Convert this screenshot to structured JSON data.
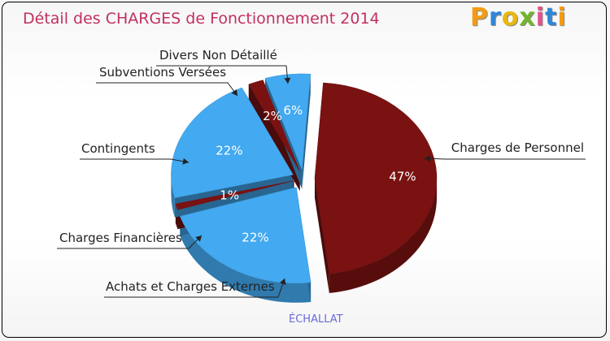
{
  "header": {
    "title": "Détail des CHARGES de Fonctionnement 2014",
    "brand": "Proxiti",
    "brand_colors": [
      "#f39c12",
      "#2f86d6",
      "#e8b80f",
      "#73b52a",
      "#e4508a",
      "#2f86d6",
      "#f39c12"
    ]
  },
  "footer": {
    "commune": "ÉCHALLAT"
  },
  "chart_data": {
    "type": "pie",
    "title": "Détail des CHARGES de Fonctionnement 2014",
    "subtitle": "ÉCHALLAT",
    "slices": [
      {
        "label": "Charges de Personnel",
        "value": 47,
        "pct_text": "47%",
        "color": "#7a1212"
      },
      {
        "label": "Achats et Charges Externes",
        "value": 22,
        "pct_text": "22%",
        "color": "#43a9f0"
      },
      {
        "label": "Charges Financières",
        "value": 1,
        "pct_text": "1%",
        "color": "#7a1212"
      },
      {
        "label": "Contingents",
        "value": 22,
        "pct_text": "22%",
        "color": "#43a9f0"
      },
      {
        "label": "Subventions Versées",
        "value": 2,
        "pct_text": "2%",
        "color": "#7a1212"
      },
      {
        "label": "Divers Non Détaillé",
        "value": 6,
        "pct_text": "6%",
        "color": "#43a9f0"
      }
    ]
  }
}
